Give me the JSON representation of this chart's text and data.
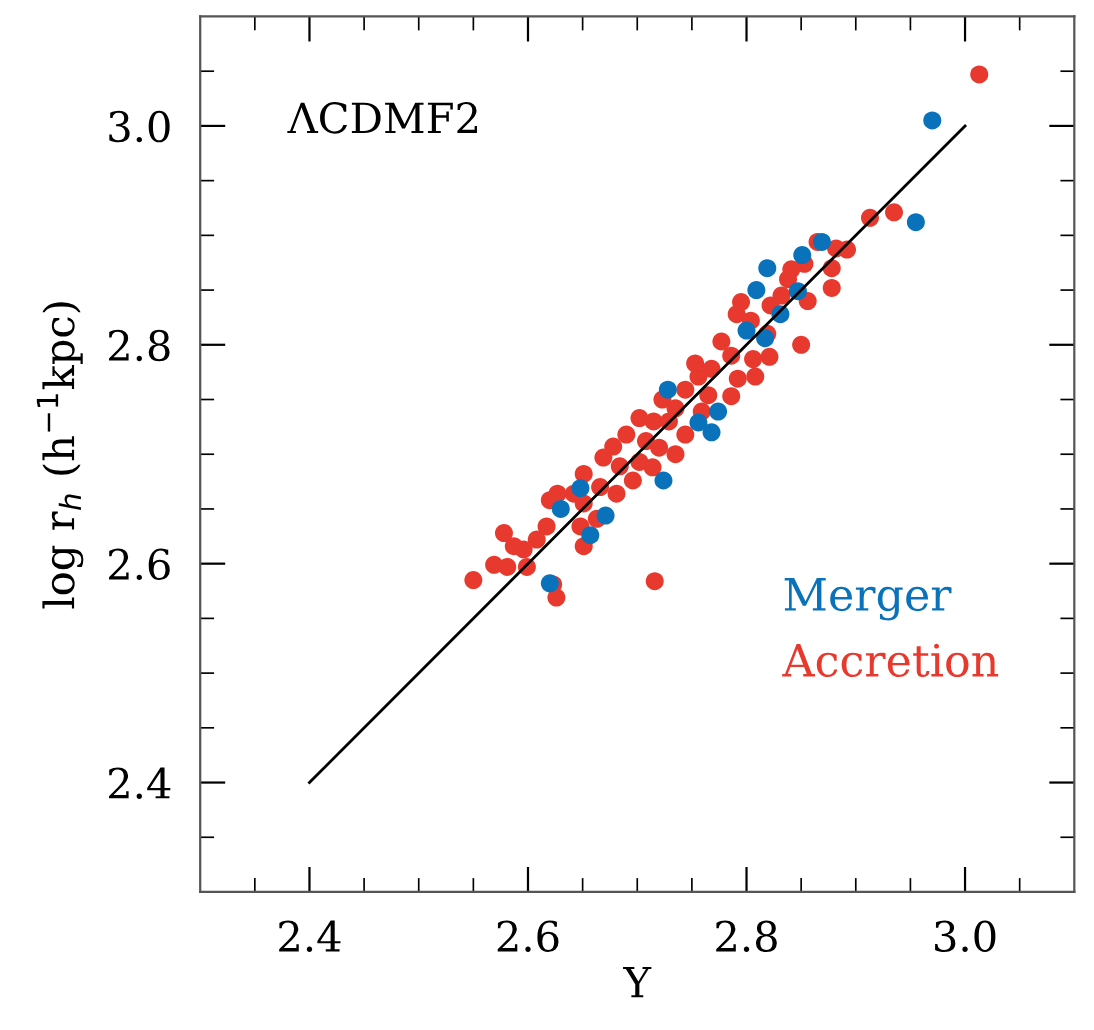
{
  "chart_data": {
    "type": "scatter",
    "xlabel": "Y",
    "ylabel": "log r$_{h}$ (h$^{−1}$kpc)",
    "annotations": [
      "ΛCDMF2"
    ],
    "xlim": [
      2.3,
      3.1
    ],
    "ylim": [
      2.3,
      3.1
    ],
    "xticks": [
      {
        "value": 2.35,
        "label": null
      },
      2.4,
      {
        "value": 2.45,
        "label": null
      },
      {
        "value": 2.5,
        "label": null
      },
      {
        "value": 2.55,
        "label": null
      },
      2.6,
      {
        "value": 2.65,
        "label": null
      },
      {
        "value": 2.7,
        "label": null
      },
      {
        "value": 2.75,
        "label": null
      },
      2.8,
      {
        "value": 2.85,
        "label": null
      },
      {
        "value": 2.9,
        "label": null
      },
      {
        "value": 2.95,
        "label": null
      },
      {
        "value": 3,
        "label": "3.0"
      },
      {
        "value": 3.05,
        "label": null
      }
    ],
    "yticks": [
      {
        "value": 2.35,
        "label": null
      },
      2.4,
      {
        "value": 2.45,
        "label": null
      },
      {
        "value": 2.5,
        "label": null
      },
      {
        "value": 2.55,
        "label": null
      },
      2.6,
      {
        "value": 2.65,
        "label": null
      },
      {
        "value": 2.7,
        "label": null
      },
      {
        "value": 2.75,
        "label": null
      },
      2.8,
      {
        "value": 2.85,
        "label": null
      },
      {
        "value": 2.9,
        "label": null
      },
      {
        "value": 2.95,
        "label": null
      },
      {
        "value": 3,
        "label": "3.0"
      },
      {
        "value": 3.05,
        "label": null
      }
    ],
    "grid": false,
    "legend": "bottom right",
    "series": [
      {
        "name": "Merger",
        "color": "#0a72ba",
        "marker": "circle",
        "x": [
          2.97,
          2.955,
          2.869,
          2.851,
          2.819,
          2.809,
          2.847,
          2.831,
          2.8,
          2.817,
          2.728,
          2.774,
          2.768,
          2.756,
          2.724,
          2.671,
          2.657,
          2.648,
          2.63,
          2.62
        ],
        "values": [
          3.005,
          2.912,
          2.894,
          2.882,
          2.87,
          2.85,
          2.849,
          2.828,
          2.813,
          2.806,
          2.759,
          2.739,
          2.72,
          2.729,
          2.676,
          2.644,
          2.626,
          2.669,
          2.65,
          2.582
        ]
      },
      {
        "name": "Accretion",
        "color": "#e8392e",
        "marker": "circle",
        "x": [
          3.013,
          2.935,
          2.913,
          2.892,
          2.882,
          2.865,
          2.878,
          2.878,
          2.853,
          2.841,
          2.838,
          2.856,
          2.832,
          2.822,
          2.795,
          2.791,
          2.804,
          2.819,
          2.85,
          2.777,
          2.786,
          2.821,
          2.806,
          2.753,
          2.768,
          2.792,
          2.808,
          2.786,
          2.756,
          2.744,
          2.765,
          2.723,
          2.735,
          2.759,
          2.702,
          2.715,
          2.729,
          2.744,
          2.69,
          2.708,
          2.72,
          2.735,
          2.678,
          2.669,
          2.702,
          2.714,
          2.684,
          2.696,
          2.651,
          2.666,
          2.681,
          2.642,
          2.651,
          2.62,
          2.627,
          2.663,
          2.648,
          2.617,
          2.608,
          2.578,
          2.587,
          2.596,
          2.651,
          2.569,
          2.581,
          2.599,
          2.55,
          2.716,
          2.623,
          2.626
        ],
        "values": [
          3.047,
          2.921,
          2.916,
          2.887,
          2.888,
          2.894,
          2.87,
          2.852,
          2.874,
          2.869,
          2.86,
          2.84,
          2.845,
          2.836,
          2.839,
          2.828,
          2.822,
          2.81,
          2.8,
          2.803,
          2.79,
          2.789,
          2.787,
          2.783,
          2.778,
          2.769,
          2.771,
          2.753,
          2.771,
          2.759,
          2.754,
          2.75,
          2.742,
          2.739,
          2.733,
          2.73,
          2.73,
          2.718,
          2.718,
          2.712,
          2.706,
          2.7,
          2.707,
          2.697,
          2.693,
          2.688,
          2.689,
          2.676,
          2.682,
          2.67,
          2.664,
          2.664,
          2.655,
          2.658,
          2.664,
          2.641,
          2.634,
          2.634,
          2.622,
          2.628,
          2.616,
          2.613,
          2.616,
          2.599,
          2.597,
          2.597,
          2.585,
          2.584,
          2.581,
          2.569
        ]
      },
      {
        "type": "line",
        "color": "#000000",
        "x": [
          2.4,
          3.0
        ],
        "values": [
          2.4,
          3.0
        ]
      }
    ]
  }
}
